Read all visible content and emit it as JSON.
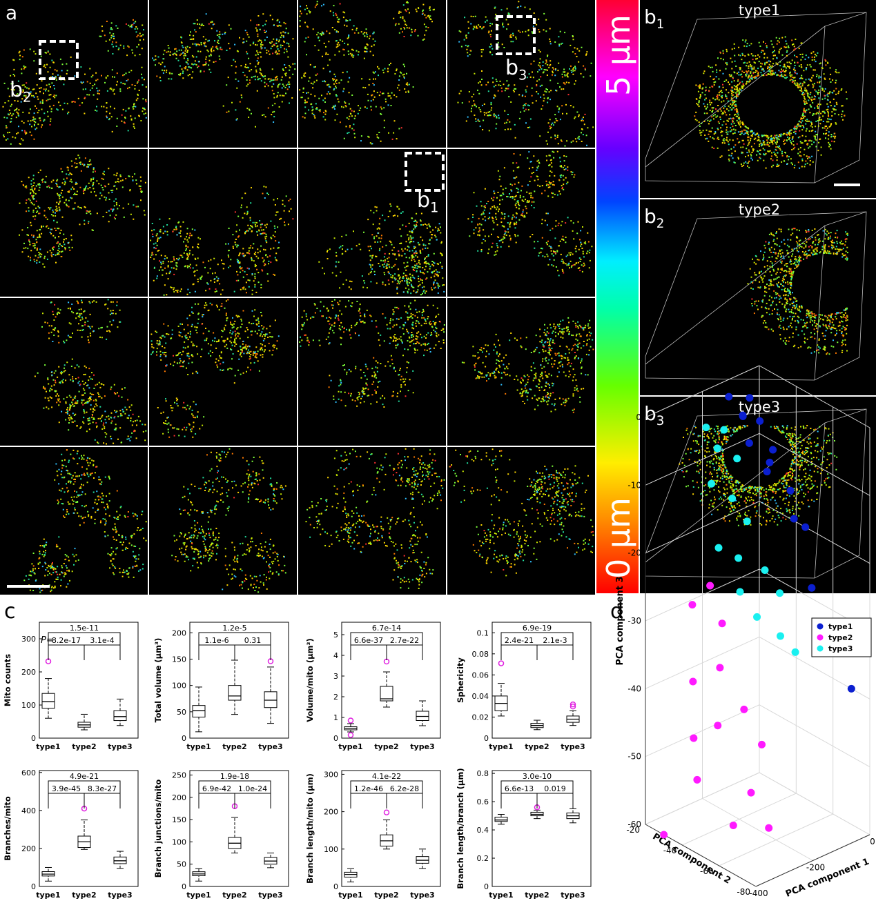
{
  "panel_labels": {
    "a": "a",
    "c": "c",
    "d": "d"
  },
  "panel_a": {
    "insets": [
      {
        "label": "b",
        "sub": "2"
      },
      {
        "label": "b",
        "sub": "1"
      },
      {
        "label": "b",
        "sub": "3"
      }
    ],
    "colorbar": {
      "top": "5 μm",
      "bottom": "0 μm"
    }
  },
  "panel_b": [
    {
      "label": "b",
      "sub": "1",
      "title": "type1"
    },
    {
      "label": "b",
      "sub": "2",
      "title": "type2"
    },
    {
      "label": "b",
      "sub": "3",
      "title": "type3"
    }
  ],
  "chart_data": [
    {
      "type": "box",
      "ylabel": "Mito counts",
      "p_prefix": "P=",
      "categories": [
        "type1",
        "type2",
        "type3"
      ],
      "ylim": [
        0,
        350
      ],
      "yticks": [
        0,
        100,
        200,
        300
      ],
      "p_values": {
        "overall": "1.5e-11",
        "left": "8.2e-17",
        "right": "3.1e-4"
      },
      "outlier_color": "#e020e0",
      "boxes": [
        {
          "whislo": 60,
          "q1": 90,
          "med": 110,
          "q3": 135,
          "whishi": 180,
          "fliers": [
            232
          ]
        },
        {
          "whislo": 25,
          "q1": 33,
          "med": 40,
          "q3": 48,
          "whishi": 72,
          "fliers": []
        },
        {
          "whislo": 38,
          "q1": 53,
          "med": 65,
          "q3": 83,
          "whishi": 118,
          "fliers": []
        }
      ]
    },
    {
      "type": "box",
      "ylabel": "Total volume (μm³)",
      "categories": [
        "type1",
        "type2",
        "type3"
      ],
      "ylim": [
        0,
        220
      ],
      "yticks": [
        0,
        50,
        100,
        150,
        200
      ],
      "p_values": {
        "overall": "1.2e-5",
        "left": "1.1e-6",
        "right": "0.31"
      },
      "outlier_color": "#e020e0",
      "boxes": [
        {
          "whislo": 12,
          "q1": 40,
          "med": 52,
          "q3": 62,
          "whishi": 97,
          "fliers": []
        },
        {
          "whislo": 45,
          "q1": 72,
          "med": 80,
          "q3": 100,
          "whishi": 148,
          "fliers": []
        },
        {
          "whislo": 28,
          "q1": 58,
          "med": 72,
          "q3": 88,
          "whishi": 135,
          "fliers": [
            146
          ]
        }
      ]
    },
    {
      "type": "box",
      "ylabel": "Volume/mito (μm³)",
      "categories": [
        "type1",
        "type2",
        "type3"
      ],
      "ylim": [
        0,
        5.6
      ],
      "yticks": [
        0,
        1,
        2,
        3,
        4,
        5
      ],
      "p_values": {
        "overall": "6.7e-14",
        "left": "6.6e-37",
        "right": "2.7e-22"
      },
      "outlier_color": "#e020e0",
      "boxes": [
        {
          "whislo": 0.3,
          "q1": 0.4,
          "med": 0.48,
          "q3": 0.55,
          "whishi": 0.7,
          "fliers": [
            0.85,
            0.15
          ]
        },
        {
          "whislo": 1.5,
          "q1": 1.8,
          "med": 1.9,
          "q3": 2.5,
          "whishi": 3.2,
          "fliers": [
            3.7
          ]
        },
        {
          "whislo": 0.6,
          "q1": 0.85,
          "med": 1.05,
          "q3": 1.3,
          "whishi": 1.8,
          "fliers": []
        }
      ]
    },
    {
      "type": "box",
      "ylabel": "Sphericity",
      "categories": [
        "type1",
        "type2",
        "type3"
      ],
      "ylim": [
        0,
        0.11
      ],
      "yticks": [
        0,
        0.02,
        0.04,
        0.06,
        0.08,
        0.1
      ],
      "p_values": {
        "overall": "6.9e-19",
        "left": "2.4e-21",
        "right": "2.1e-3"
      },
      "outlier_color": "#e020e0",
      "boxes": [
        {
          "whislo": 0.021,
          "q1": 0.026,
          "med": 0.033,
          "q3": 0.04,
          "whishi": 0.052,
          "fliers": [
            0.071
          ]
        },
        {
          "whislo": 0.008,
          "q1": 0.01,
          "med": 0.012,
          "q3": 0.014,
          "whishi": 0.017,
          "fliers": []
        },
        {
          "whislo": 0.012,
          "q1": 0.015,
          "med": 0.018,
          "q3": 0.021,
          "whishi": 0.026,
          "fliers": [
            0.03,
            0.032
          ]
        }
      ]
    },
    {
      "type": "box",
      "ylabel": "Branches/mito",
      "categories": [
        "type1",
        "type2",
        "type3"
      ],
      "ylim": [
        0,
        610
      ],
      "yticks": [
        0,
        200,
        400,
        600
      ],
      "p_values": {
        "overall": "4.9e-21",
        "left": "3.9e-45",
        "right": "8.3e-27"
      },
      "outlier_color": "#e020e0",
      "boxes": [
        {
          "whislo": 28,
          "q1": 55,
          "med": 65,
          "q3": 78,
          "whishi": 100,
          "fliers": []
        },
        {
          "whislo": 195,
          "q1": 205,
          "med": 235,
          "q3": 265,
          "whishi": 350,
          "fliers": [
            410
          ]
        },
        {
          "whislo": 95,
          "q1": 120,
          "med": 135,
          "q3": 155,
          "whishi": 185,
          "fliers": []
        }
      ]
    },
    {
      "type": "box",
      "ylabel": "Branch junctions/mito",
      "categories": [
        "type1",
        "type2",
        "type3"
      ],
      "ylim": [
        0,
        260
      ],
      "yticks": [
        0,
        50,
        100,
        150,
        200,
        250
      ],
      "p_values": {
        "overall": "1.9e-18",
        "left": "6.9e-42",
        "right": "1.0e-24"
      },
      "outlier_color": "#e020e0",
      "boxes": [
        {
          "whislo": 12,
          "q1": 24,
          "med": 28,
          "q3": 33,
          "whishi": 40,
          "fliers": []
        },
        {
          "whislo": 75,
          "q1": 85,
          "med": 97,
          "q3": 110,
          "whishi": 155,
          "fliers": [
            180
          ]
        },
        {
          "whislo": 42,
          "q1": 50,
          "med": 57,
          "q3": 65,
          "whishi": 75,
          "fliers": []
        }
      ]
    },
    {
      "type": "box",
      "ylabel": "Branch length/mito (μm)",
      "categories": [
        "type1",
        "type2",
        "type3"
      ],
      "ylim": [
        0,
        310
      ],
      "yticks": [
        0,
        100,
        200,
        300
      ],
      "p_values": {
        "overall": "4.1e-22",
        "left": "1.2e-46",
        "right": "6.2e-28"
      },
      "outlier_color": "#e020e0",
      "boxes": [
        {
          "whislo": 12,
          "q1": 25,
          "med": 32,
          "q3": 38,
          "whishi": 48,
          "fliers": []
        },
        {
          "whislo": 100,
          "q1": 108,
          "med": 122,
          "q3": 138,
          "whishi": 178,
          "fliers": [
            198
          ]
        },
        {
          "whislo": 48,
          "q1": 62,
          "med": 70,
          "q3": 80,
          "whishi": 100,
          "fliers": []
        }
      ]
    },
    {
      "type": "box",
      "ylabel": "Branch length/branch (μm)",
      "categories": [
        "type1",
        "type2",
        "type3"
      ],
      "ylim": [
        0,
        0.82
      ],
      "yticks": [
        0,
        0.2,
        0.4,
        0.6,
        0.8
      ],
      "p_values": {
        "overall": "3.0e-10",
        "left": "6.6e-13",
        "right": "0.019"
      },
      "outlier_color": "#e020e0",
      "boxes": [
        {
          "whislo": 0.44,
          "q1": 0.46,
          "med": 0.47,
          "q3": 0.49,
          "whishi": 0.51,
          "fliers": []
        },
        {
          "whislo": 0.48,
          "q1": 0.5,
          "med": 0.51,
          "q3": 0.525,
          "whishi": 0.54,
          "fliers": [
            0.56
          ]
        },
        {
          "whislo": 0.45,
          "q1": 0.48,
          "med": 0.5,
          "q3": 0.52,
          "whishi": 0.55,
          "fliers": []
        }
      ]
    },
    {
      "type": "scatter3d",
      "xlabel": "PCA component 1",
      "ylabel": "PCA component 2",
      "zlabel": "PCA component 3",
      "xlim": [
        -400,
        0
      ],
      "xticks": [
        -400,
        -200,
        0
      ],
      "ylim": [
        -80,
        -20
      ],
      "yticks": [
        -80,
        -60,
        -40,
        -20
      ],
      "zlim": [
        -60,
        0
      ],
      "zticks": [
        0,
        -10,
        -20,
        -30,
        -40,
        -50,
        -60
      ],
      "grid": true,
      "legend": "upper right",
      "series": [
        {
          "name": "type1",
          "color": "#0b1fd0",
          "x": [
            -120,
            -90,
            -60,
            -100,
            -50,
            -70,
            -30,
            -20,
            0,
            -10,
            -40,
            -80,
            -110,
            -5,
            0
          ],
          "y": [
            -22,
            -25,
            -24,
            -30,
            -28,
            -35,
            -32,
            -40,
            -45,
            -50,
            -45,
            -38,
            -28,
            -60,
            -70
          ],
          "z": [
            -2,
            -5,
            -3,
            -8,
            -6,
            -12,
            -10,
            -15,
            -20,
            -28,
            -18,
            -10,
            -4,
            -35,
            -40
          ]
        },
        {
          "name": "type2",
          "color": "#ff1aff",
          "x": [
            -400,
            -380,
            -360,
            -340,
            -330,
            -300,
            -280,
            -260,
            -300,
            -350,
            -250,
            -320,
            -270,
            -290
          ],
          "y": [
            -30,
            -45,
            -40,
            -50,
            -35,
            -45,
            -55,
            -40,
            -30,
            -60,
            -60,
            -65,
            -35,
            -70
          ],
          "z": [
            -60,
            -50,
            -45,
            -42,
            -38,
            -35,
            -40,
            -30,
            -28,
            -55,
            -45,
            -50,
            -25,
            -55
          ]
        },
        {
          "name": "type3",
          "color": "#1af0f0",
          "x": [
            -200,
            -180,
            -150,
            -220,
            -160,
            -130,
            -240,
            -190,
            -140,
            -110,
            -90,
            -170,
            -210,
            -120,
            -100
          ],
          "y": [
            -22,
            -25,
            -24,
            -28,
            -30,
            -28,
            -35,
            -38,
            -35,
            -40,
            -45,
            -45,
            -42,
            -50,
            -55
          ],
          "z": [
            -5,
            -8,
            -6,
            -12,
            -15,
            -10,
            -20,
            -22,
            -18,
            -25,
            -28,
            -30,
            -26,
            -33,
            -35
          ]
        }
      ]
    }
  ]
}
